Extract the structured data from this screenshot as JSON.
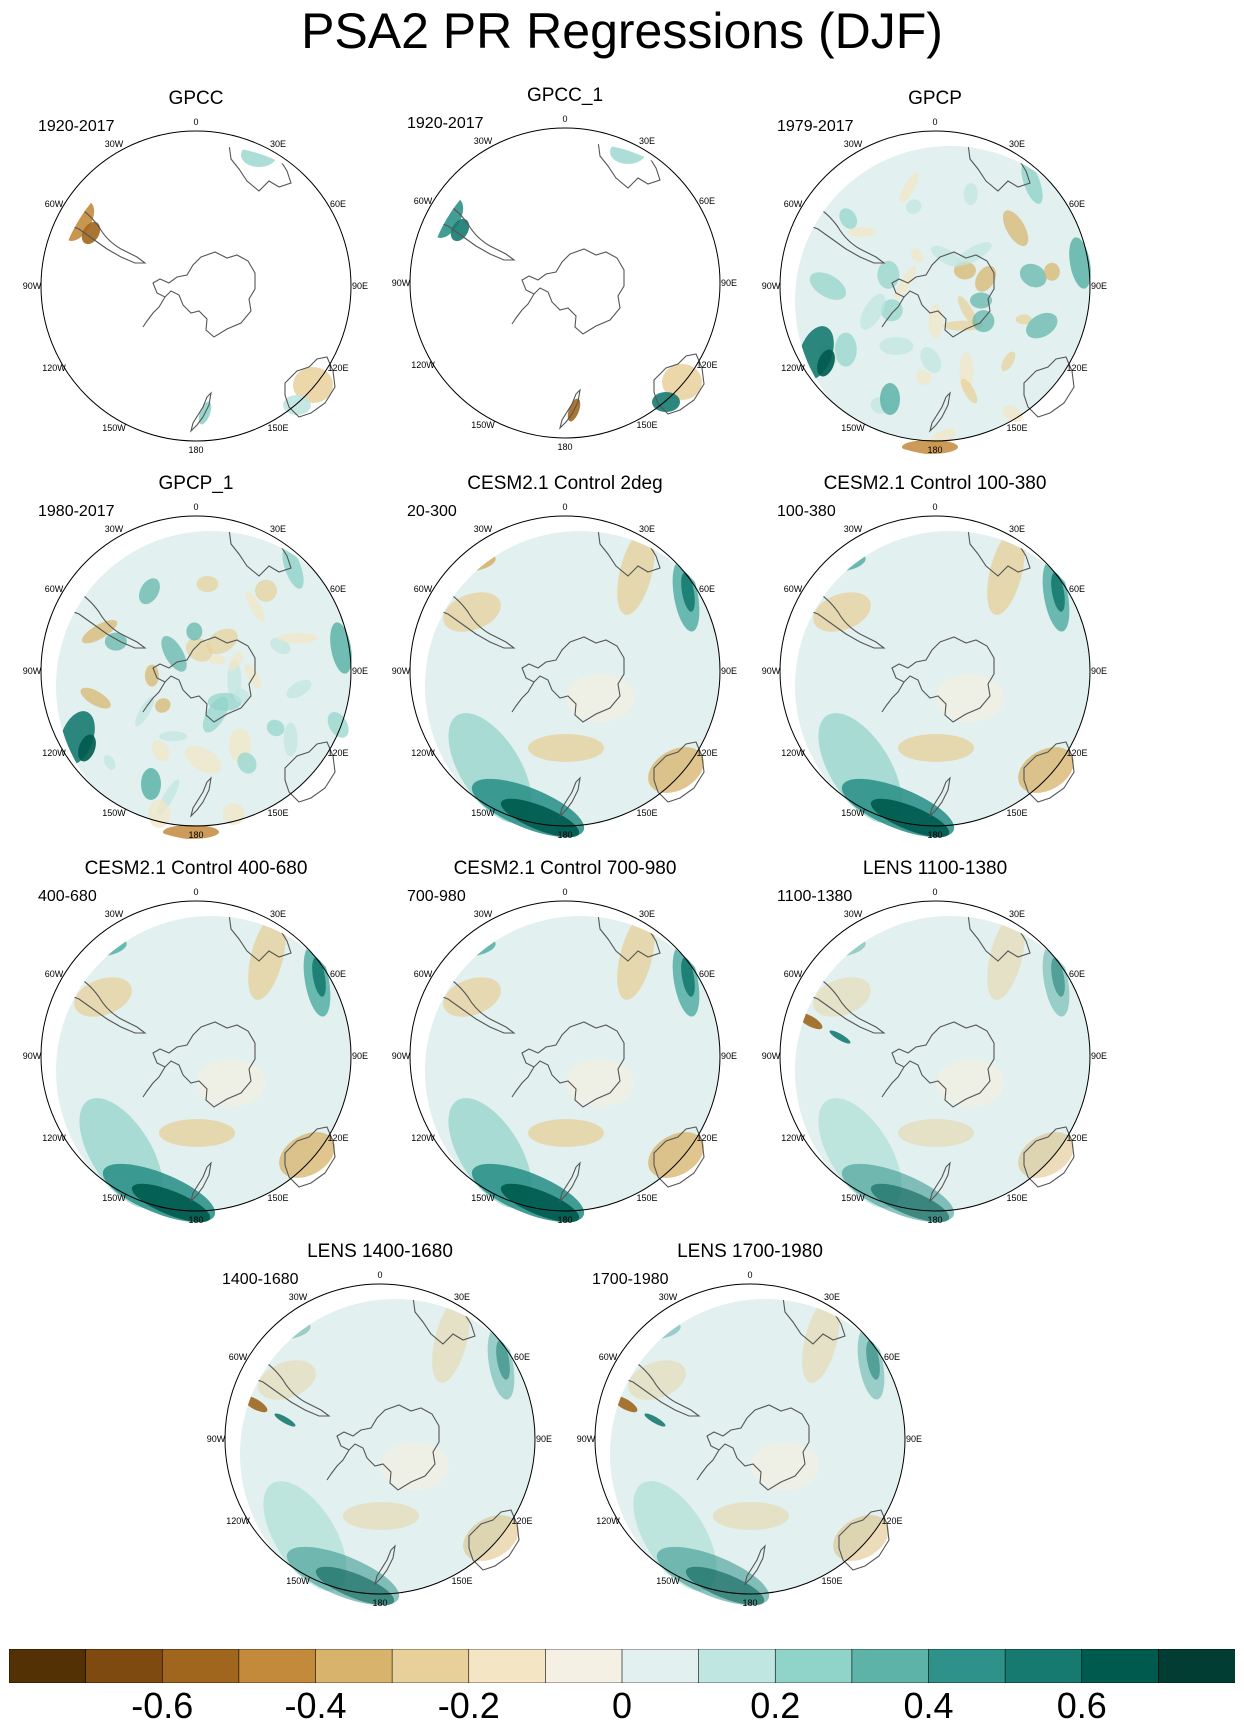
{
  "title": "PSA2 PR Regressions (DJF)",
  "lon_labels": [
    "0",
    "30E",
    "60E",
    "90E",
    "120E",
    "150E",
    "180",
    "150W",
    "120W",
    "90W",
    "60W",
    "30W"
  ],
  "panels": [
    {
      "title": "GPCC",
      "period": "1920-2017",
      "field": "land-only"
    },
    {
      "title": "GPCC_1",
      "period": "1920-2017",
      "field": "land-only"
    },
    {
      "title": "GPCP",
      "period": "1979-2017",
      "field": "full"
    },
    {
      "title": "GPCP_1",
      "period": "1980-2017",
      "field": "full"
    },
    {
      "title": "CESM2.1 Control 2deg",
      "period": "20-300",
      "field": "full"
    },
    {
      "title": "CESM2.1 Control 100-380",
      "period": "100-380",
      "field": "full"
    },
    {
      "title": "CESM2.1 Control 400-680",
      "period": "400-680",
      "field": "full"
    },
    {
      "title": "CESM2.1 Control 700-980",
      "period": "700-980",
      "field": "full"
    },
    {
      "title": "LENS 1100-1380",
      "period": "1100-1380",
      "field": "full"
    },
    {
      "title": "LENS 1400-1680",
      "period": "1400-1680",
      "field": "full"
    },
    {
      "title": "LENS 1700-1980",
      "period": "1700-1980",
      "field": "full"
    }
  ],
  "colorbar": {
    "colors": [
      "#543005",
      "#7f4a10",
      "#a0661d",
      "#c48a3c",
      "#d8b36b",
      "#e8d09a",
      "#f4e6c4",
      "#f4f0e3",
      "#e2f0ef",
      "#c0e6e1",
      "#90d3c9",
      "#5db3a8",
      "#2f928a",
      "#177a70",
      "#005a4e",
      "#013d32"
    ],
    "ticks": [
      {
        "value": -0.6,
        "label": "-0.6"
      },
      {
        "value": -0.4,
        "label": "-0.4"
      },
      {
        "value": -0.2,
        "label": "-0.2"
      },
      {
        "value": 0,
        "label": "0"
      },
      {
        "value": 0.2,
        "label": "0.2"
      },
      {
        "value": 0.4,
        "label": "0.4"
      },
      {
        "value": 0.6,
        "label": "0.6"
      }
    ],
    "vmin": -0.8,
    "vmax": 0.8
  }
}
